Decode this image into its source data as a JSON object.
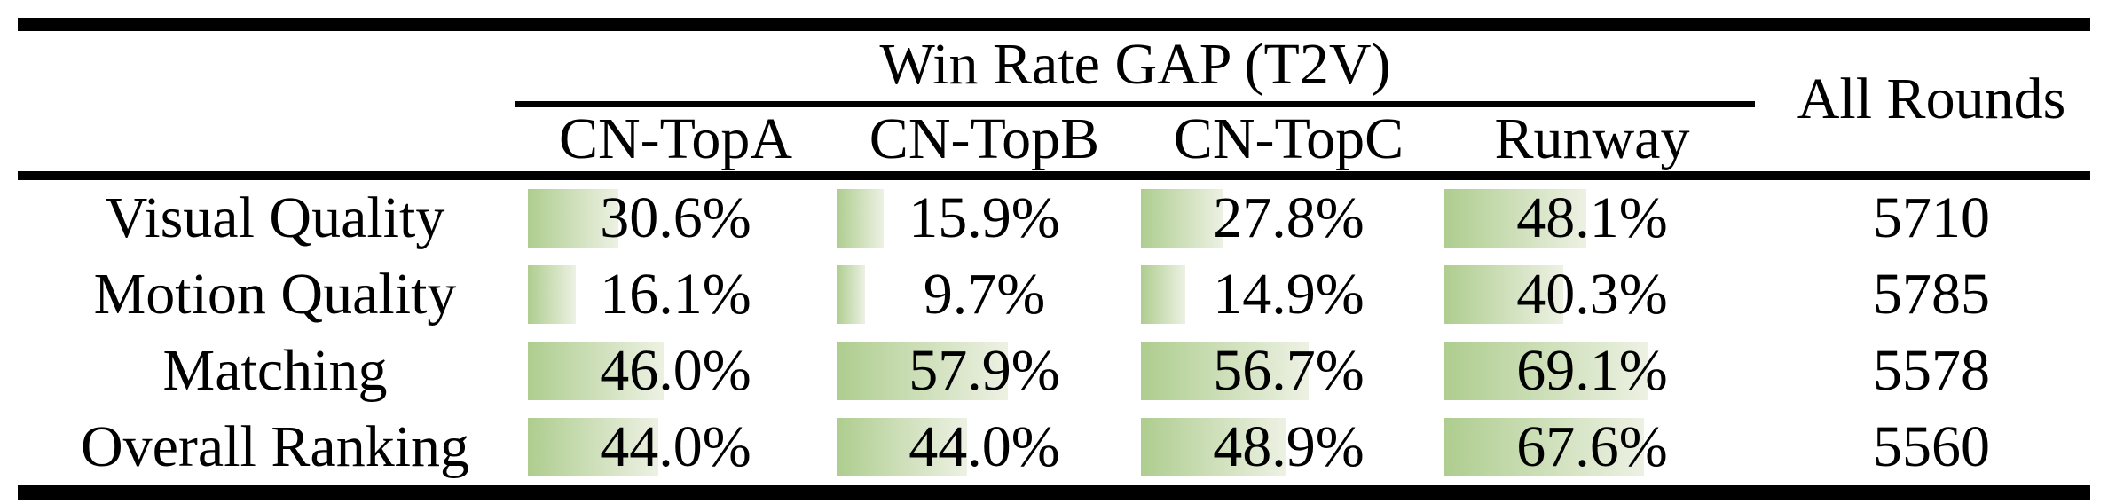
{
  "table": {
    "group_header": "Win Rate GAP (T2V)",
    "all_rounds_header": "All Rounds",
    "columns": [
      "CN-TopA",
      "CN-TopB",
      "CN-TopC",
      "Runway"
    ],
    "rows": [
      {
        "label": "Visual Quality",
        "cells": [
          {
            "pct": 30.6,
            "text": "30.6%"
          },
          {
            "pct": 15.9,
            "text": "15.9%"
          },
          {
            "pct": 27.8,
            "text": "27.8%"
          },
          {
            "pct": 48.1,
            "text": "48.1%"
          }
        ],
        "all_rounds": "5710"
      },
      {
        "label": "Motion Quality",
        "cells": [
          {
            "pct": 16.1,
            "text": "16.1%"
          },
          {
            "pct": 9.7,
            "text": "9.7%"
          },
          {
            "pct": 14.9,
            "text": "14.9%"
          },
          {
            "pct": 40.3,
            "text": "40.3%"
          }
        ],
        "all_rounds": "5785"
      },
      {
        "label": "Matching",
        "cells": [
          {
            "pct": 46.0,
            "text": "46.0%"
          },
          {
            "pct": 57.9,
            "text": "57.9%"
          },
          {
            "pct": 56.7,
            "text": "56.7%"
          },
          {
            "pct": 69.1,
            "text": "69.1%"
          }
        ],
        "all_rounds": "5578"
      },
      {
        "label": "Overall Ranking",
        "cells": [
          {
            "pct": 44.0,
            "text": "44.0%"
          },
          {
            "pct": 44.0,
            "text": "44.0%"
          },
          {
            "pct": 48.9,
            "text": "48.9%"
          },
          {
            "pct": 67.6,
            "text": "67.6%"
          }
        ],
        "all_rounds": "5560"
      }
    ],
    "colors": {
      "bar_gradient_start": "#aecd8f",
      "bar_gradient_end": "#edf1e3",
      "rule": "#000000",
      "background": "#ffffff",
      "text": "#000000"
    }
  },
  "chart_data": {
    "type": "table",
    "title": "Win Rate GAP (T2V)",
    "categories": [
      "Visual Quality",
      "Motion Quality",
      "Matching",
      "Overall Ranking"
    ],
    "series": [
      {
        "name": "CN-TopA",
        "unit": "%",
        "values": [
          30.6,
          16.1,
          46.0,
          44.0
        ]
      },
      {
        "name": "CN-TopB",
        "unit": "%",
        "values": [
          15.9,
          9.7,
          57.9,
          44.0
        ]
      },
      {
        "name": "CN-TopC",
        "unit": "%",
        "values": [
          27.8,
          14.9,
          56.7,
          48.9
        ]
      },
      {
        "name": "Runway",
        "unit": "%",
        "values": [
          48.1,
          40.3,
          69.1,
          67.6
        ]
      },
      {
        "name": "All Rounds",
        "unit": "count",
        "values": [
          5710,
          5785,
          5578,
          5560
        ]
      }
    ],
    "layout_hints": {
      "bar_scale_max_percent": 100,
      "bars": "horizontal data bars behind cell text, gradient green to white"
    }
  }
}
